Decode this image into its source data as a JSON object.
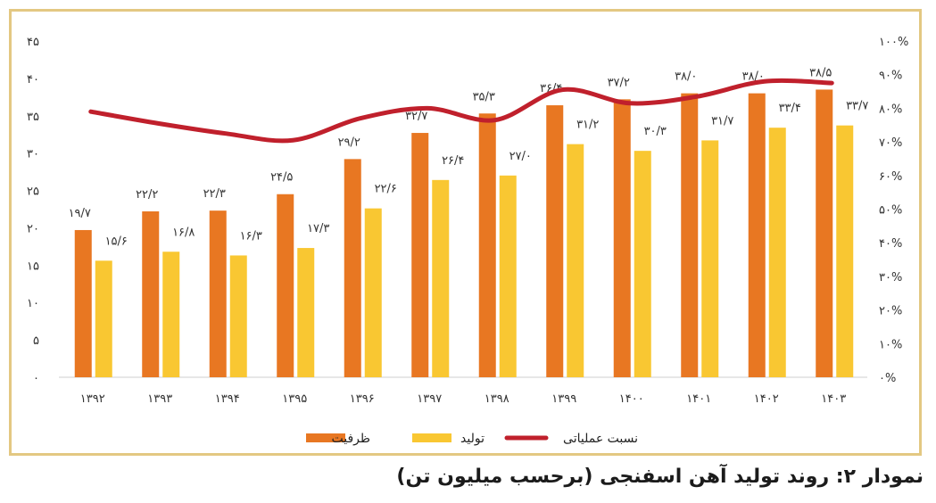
{
  "caption": "نمودار ۲: روند تولید آهن اسفنجی (برحسب میلیون تن)",
  "colors": {
    "capacity": "#e87722",
    "production": "#f9c732",
    "ratio": "#c0202c",
    "frame": "#e3c882"
  },
  "chart_data": {
    "type": "bar",
    "categories": [
      "۱۳۹۲",
      "۱۳۹۳",
      "۱۳۹۴",
      "۱۳۹۵",
      "۱۳۹۶",
      "۱۳۹۷",
      "۱۳۹۸",
      "۱۳۹۹",
      "۱۴۰۰",
      "۱۴۰۱",
      "۱۴۰۲",
      "۱۴۰۳"
    ],
    "series": [
      {
        "name": "ظرفیت",
        "kind": "bar",
        "color": "#e87722",
        "values": [
          19.7,
          22.2,
          22.3,
          24.5,
          29.2,
          32.7,
          35.3,
          36.4,
          37.2,
          38.0,
          38.0,
          38.5
        ],
        "labels": [
          "۱۹/۷",
          "۲۲/۲",
          "۲۲/۳",
          "۲۴/۵",
          "۲۹/۲",
          "۳۲/۷",
          "۳۵/۳",
          "۳۶/۴",
          "۳۷/۲",
          "۳۸/۰",
          "۳۸/۰",
          "۳۸/۵"
        ]
      },
      {
        "name": "تولید",
        "kind": "bar",
        "color": "#f9c732",
        "values": [
          15.6,
          16.8,
          16.3,
          17.3,
          22.6,
          26.4,
          27.0,
          31.2,
          30.3,
          31.7,
          33.4,
          33.7
        ],
        "labels": [
          "۱۵/۶",
          "۱۶/۸",
          "۱۶/۳",
          "۱۷/۳",
          "۲۲/۶",
          "۲۶/۴",
          "۲۷/۰",
          "۳۱/۲",
          "۳۰/۳",
          "۳۱/۷",
          "۳۳/۴",
          "۳۳/۷"
        ]
      },
      {
        "name": "نسبت عملیاتی",
        "kind": "line",
        "axis": "right",
        "color": "#c0202c",
        "values": [
          79,
          75.5,
          72.5,
          70.5,
          77,
          80,
          76.5,
          85.5,
          81.5,
          83.5,
          88,
          87.5
        ]
      }
    ],
    "ylim": [
      0,
      45
    ],
    "yticks": [
      0,
      5,
      10,
      15,
      20,
      25,
      30,
      35,
      40,
      45
    ],
    "ytick_labels": [
      "۰",
      "۵",
      "۱۰",
      "۱۵",
      "۲۰",
      "۲۵",
      "۳۰",
      "۳۵",
      "۴۰",
      "۴۵"
    ],
    "y2lim": [
      0,
      100
    ],
    "y2ticks": [
      0,
      10,
      20,
      30,
      40,
      50,
      60,
      70,
      80,
      90,
      100
    ],
    "y2tick_labels": [
      "۰%",
      "۱۰%",
      "۲۰%",
      "۳۰%",
      "۴۰%",
      "۵۰%",
      "۶۰%",
      "۷۰%",
      "۸۰%",
      "۹۰%",
      "۱۰۰%"
    ],
    "legend_position": "bottom-center",
    "grid": false
  }
}
